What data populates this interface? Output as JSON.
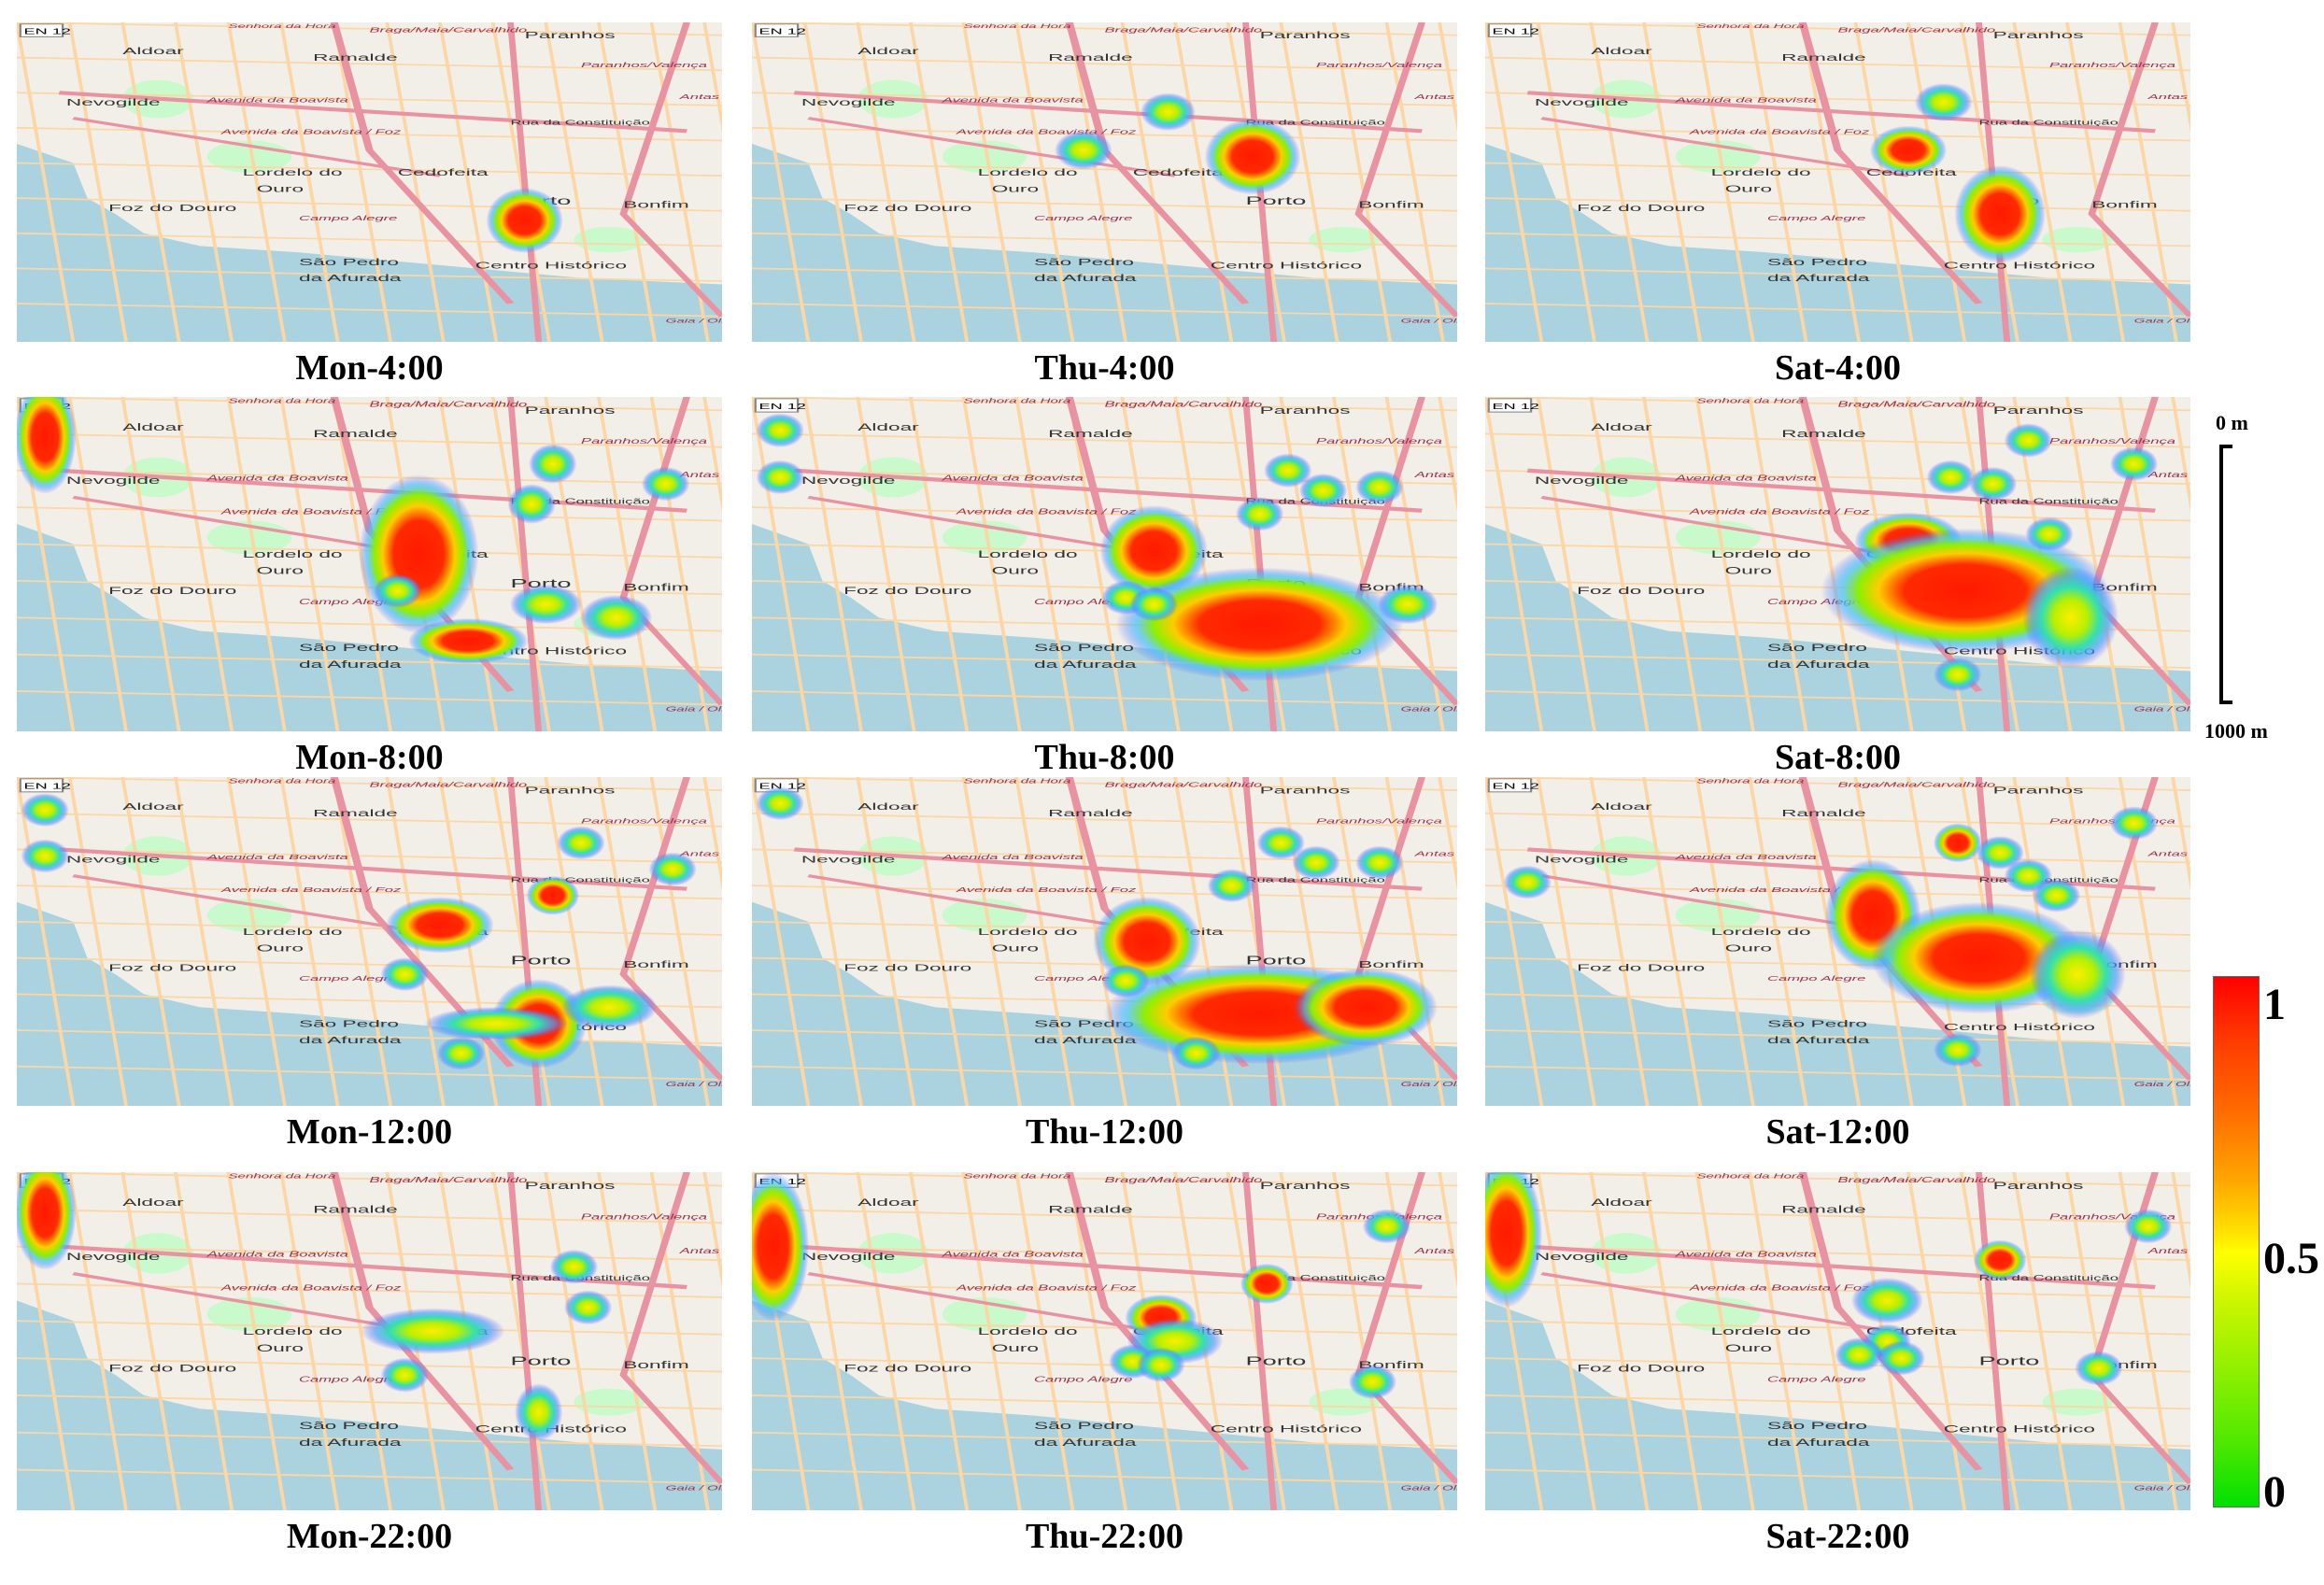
{
  "panels": [
    {
      "caption": "Mon-4:00",
      "row": 0,
      "col": 0
    },
    {
      "caption": "Thu-4:00",
      "row": 0,
      "col": 1
    },
    {
      "caption": "Sat-4:00",
      "row": 0,
      "col": 2
    },
    {
      "caption": "Mon-8:00",
      "row": 1,
      "col": 0
    },
    {
      "caption": "Thu-8:00",
      "row": 1,
      "col": 1
    },
    {
      "caption": "Sat-8:00",
      "row": 1,
      "col": 2
    },
    {
      "caption": "Mon-12:00",
      "row": 2,
      "col": 0
    },
    {
      "caption": "Thu-12:00",
      "row": 2,
      "col": 1
    },
    {
      "caption": "Sat-12:00",
      "row": 2,
      "col": 2
    },
    {
      "caption": "Mon-22:00",
      "row": 3,
      "col": 0
    },
    {
      "caption": "Thu-22:00",
      "row": 3,
      "col": 1
    },
    {
      "caption": "Sat-22:00",
      "row": 3,
      "col": 2
    }
  ],
  "map_labels": {
    "road_badge": "EN 12",
    "aldoar": "Aldoar",
    "ramalde": "Ramalde",
    "paranhos": "Paranhos",
    "nevogilde": "Nevogilde",
    "avenida_boavista": "Avenida da Boavista",
    "avenida_boavista_foz": "Avenida da Boavista / Foz",
    "lordelo": "Lordelo do",
    "ouro": "Ouro",
    "cedofeita": "Cedofeita",
    "foz_douro": "Foz do Douro",
    "campo_alegre": "Campo Alegre",
    "porto": "Porto",
    "bonfim": "Bonfim",
    "centro_historico": "Centro Histórico",
    "sao_pedro": "São Pedro",
    "da_afurada": "da Afurada",
    "rua_constituicao": "Rua da Constituição",
    "braga_maia": "Braga/Maia/Carvalhido",
    "paranhos_valenca": "Paranhos/Valença",
    "antas": "Antas",
    "gaia": "Gaia / Oliveira",
    "senhora_hora": "Senhora da Hora"
  },
  "scale": {
    "top": "0 m",
    "bottom": "1000 m"
  },
  "legend": {
    "max": "1",
    "mid": "0.5",
    "min": "0"
  },
  "colors": {
    "water": "#aad3df",
    "land": "#f2efe9",
    "park": "#c8facc",
    "road_major": "#e892a2",
    "road_minor": "#fcd6a4"
  }
}
